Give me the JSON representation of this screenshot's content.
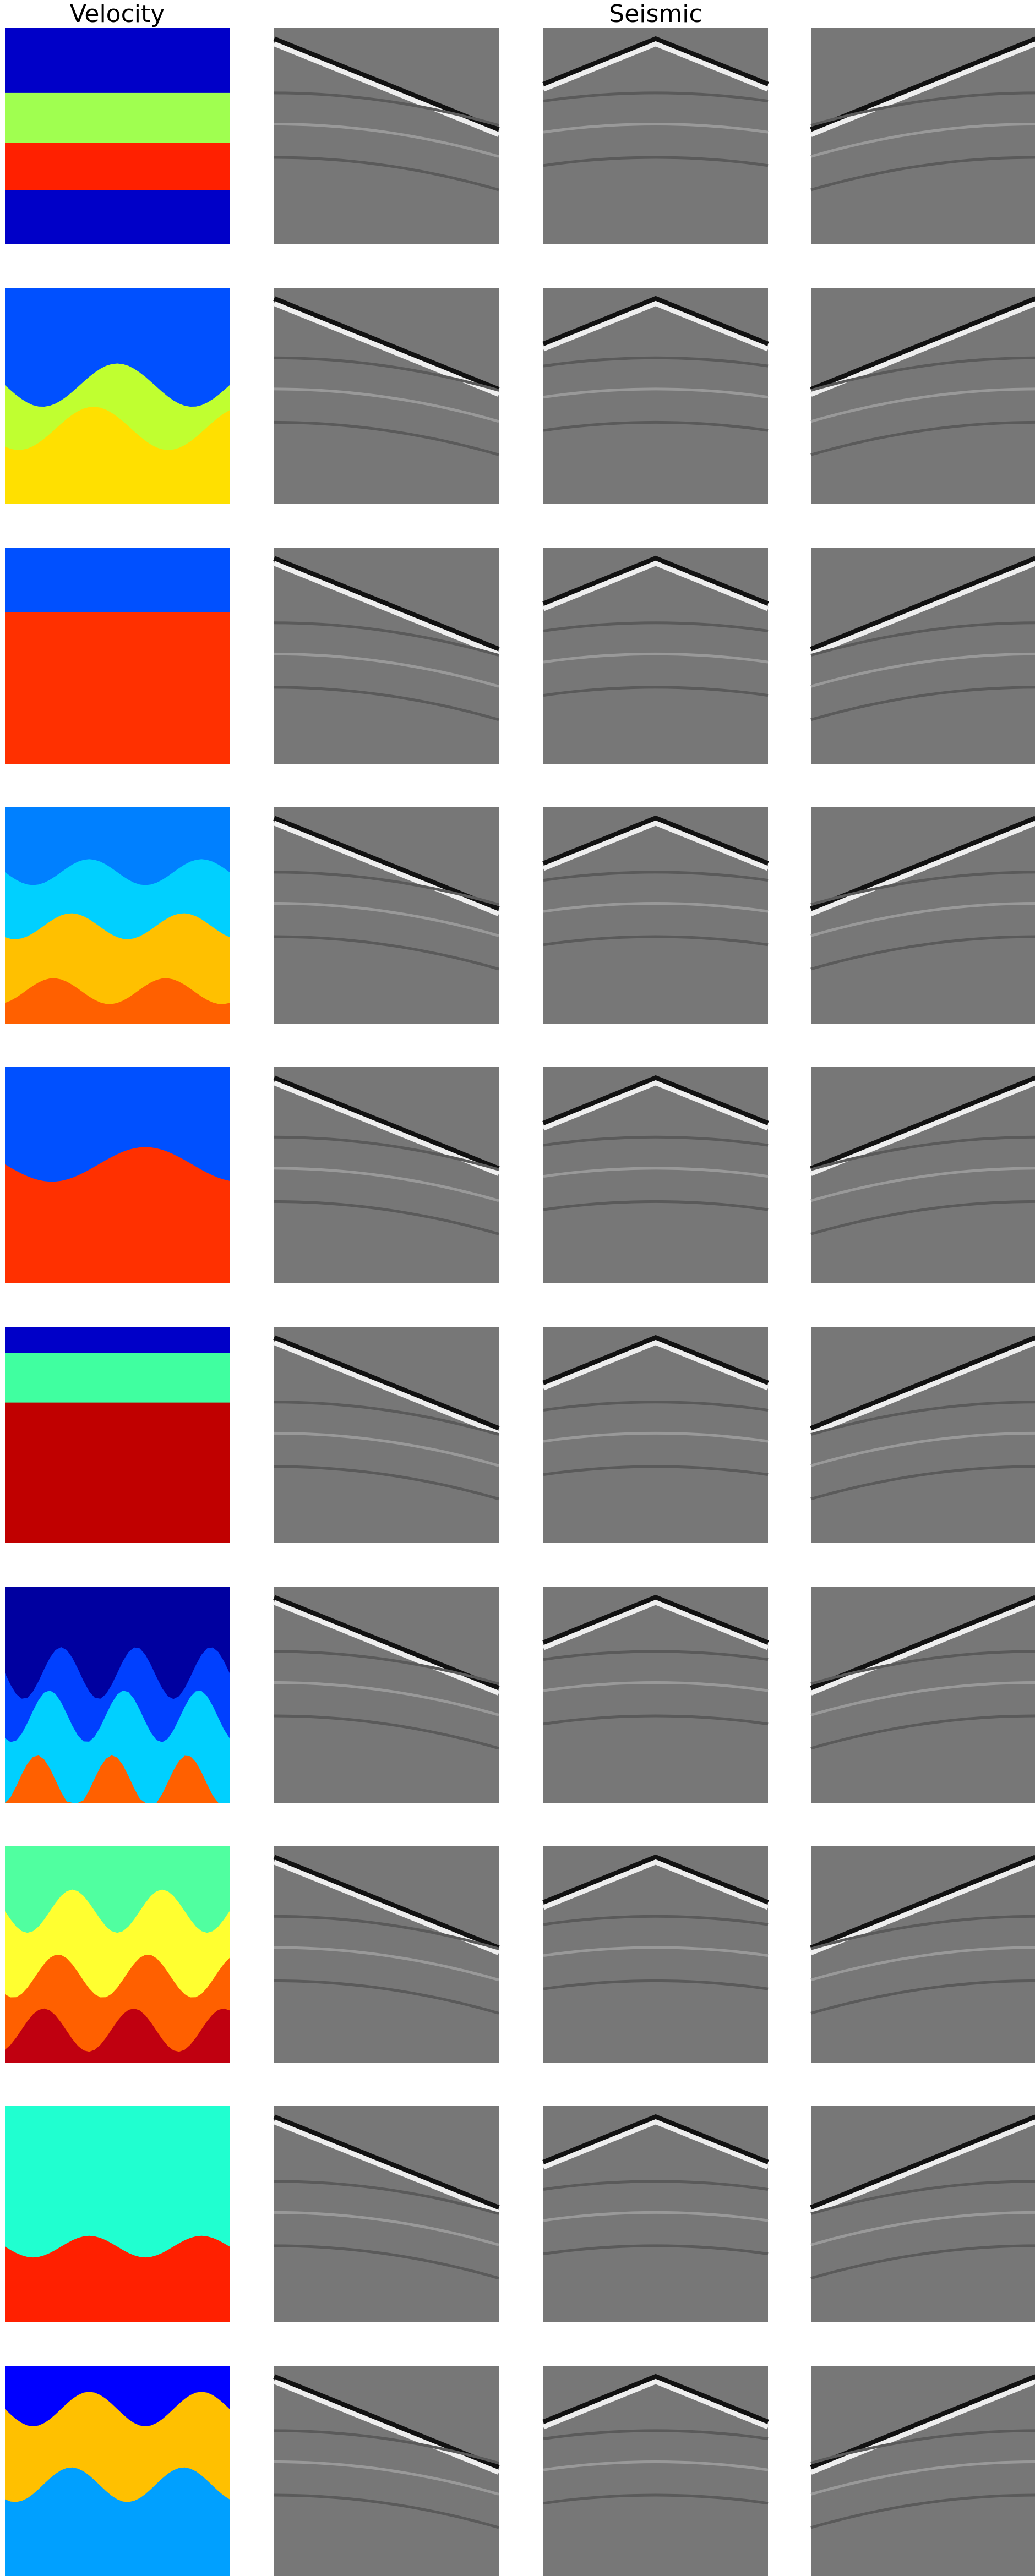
{
  "titles": {
    "velocity": "Velocity",
    "seismic": "Seismic"
  }
}
